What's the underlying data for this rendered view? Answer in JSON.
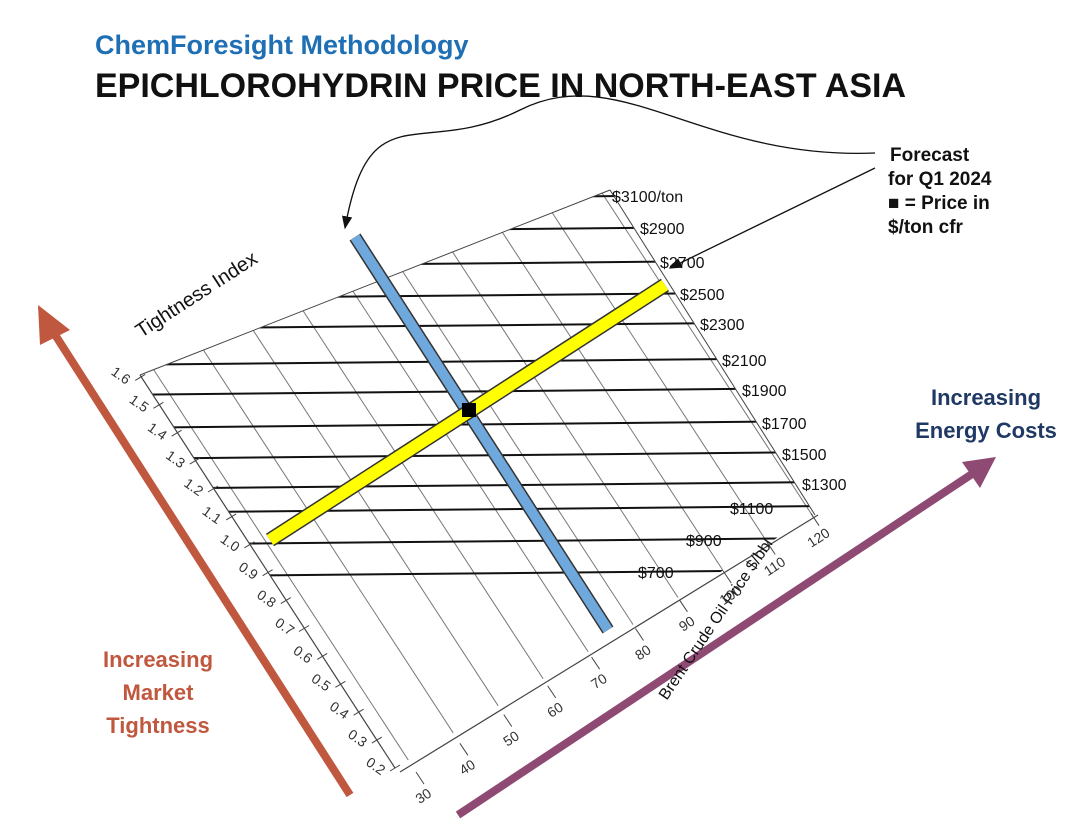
{
  "header": {
    "brand": "ChemForesight Methodology",
    "title": "EPICHLOROHYDRIN PRICE IN NORTH-EAST ASIA"
  },
  "tightness_axis": {
    "label": "Tightness Index",
    "ticks": [
      "0.2",
      "0.3",
      "0.4",
      "0.5",
      "0.6",
      "0.7",
      "0.8",
      "0.9",
      "1.0",
      "1.1",
      "1.2",
      "1.3",
      "1.4",
      "1.5",
      "1.6"
    ]
  },
  "oil_axis": {
    "label": "Brent Crude Oil Price $/bbl",
    "ticks": [
      "30",
      "40",
      "50",
      "60",
      "70",
      "80",
      "90",
      "100",
      "110",
      "120"
    ]
  },
  "price_lines": [
    "$3100/ton",
    "$2900",
    "$2700",
    "$2500",
    "$2300",
    "$2100",
    "$1900",
    "$1700",
    "$1500",
    "$1300",
    "$1100",
    "$900",
    "$700"
  ],
  "annotation": [
    "Forecast",
    "for Q1 2024",
    "■ = Price in",
    "$/ton cfr"
  ],
  "energy_label": [
    "Increasing",
    "Energy Costs"
  ],
  "tightness_label": [
    "Increasing",
    "Market",
    "Tightness"
  ]
}
